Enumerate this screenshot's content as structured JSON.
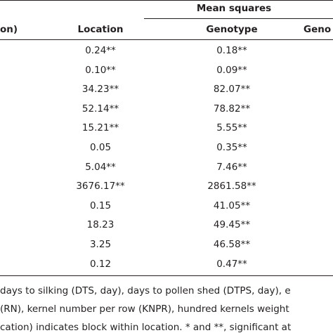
{
  "header": {
    "group": "Mean squares",
    "columns": [
      "on)",
      "Location",
      "Genotype",
      "Geno"
    ]
  },
  "table": {
    "rows": [
      [
        "0.24**",
        "0.18**"
      ],
      [
        "0.10**",
        "0.09**"
      ],
      [
        "34.23**",
        "82.07**"
      ],
      [
        "52.14**",
        "78.82**"
      ],
      [
        "15.21**",
        "5.55**"
      ],
      [
        "0.05",
        "0.35**"
      ],
      [
        "5.04**",
        "7.46**"
      ],
      [
        "3676.17**",
        "2861.58**"
      ],
      [
        "0.15",
        "41.05**"
      ],
      [
        "18.23",
        "49.45**"
      ],
      [
        "3.25",
        "46.58**"
      ],
      [
        "0.12",
        "0.47**"
      ]
    ]
  },
  "footnote": [
    "days to silking (DTS, day), days to pollen shed (DTPS, day), e",
    "(RN), kernel number per row (KNPR), hundred kernels weight",
    "cation) indicates block within location. * and **, significant at"
  ]
}
